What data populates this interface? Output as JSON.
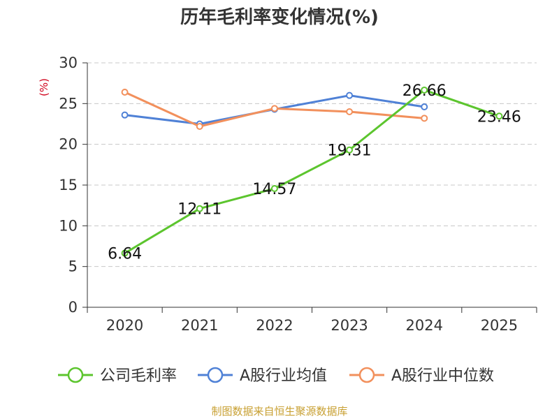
{
  "chart_data": {
    "type": "line",
    "title": "历年毛利率变化情况(%)",
    "ylabel": "(%)",
    "categories": [
      "2020",
      "2021",
      "2022",
      "2023",
      "2024",
      "2025"
    ],
    "ylim": [
      0,
      30
    ],
    "yticks": [
      0,
      5,
      10,
      15,
      20,
      25,
      30
    ],
    "grid": true,
    "legend_position": "bottom",
    "series": [
      {
        "name": "公司毛利率",
        "color": "#5cc52e",
        "values": [
          6.64,
          12.11,
          14.57,
          19.31,
          26.66,
          23.46
        ],
        "labels": [
          "6.64",
          "12.11",
          "14.57",
          "19.31",
          "26.66",
          "23.46"
        ]
      },
      {
        "name": "A股行业均值",
        "color": "#4f81d6",
        "values": [
          23.6,
          22.5,
          24.3,
          26.0,
          24.6,
          null
        ]
      },
      {
        "name": "A股行业中位数",
        "color": "#f2905c",
        "values": [
          26.4,
          22.2,
          24.4,
          24.0,
          23.2,
          null
        ]
      }
    ],
    "ylabel_color": "#d0021b"
  },
  "source_text": "制图数据来自恒生聚源数据库",
  "source_color": "#c8a032"
}
